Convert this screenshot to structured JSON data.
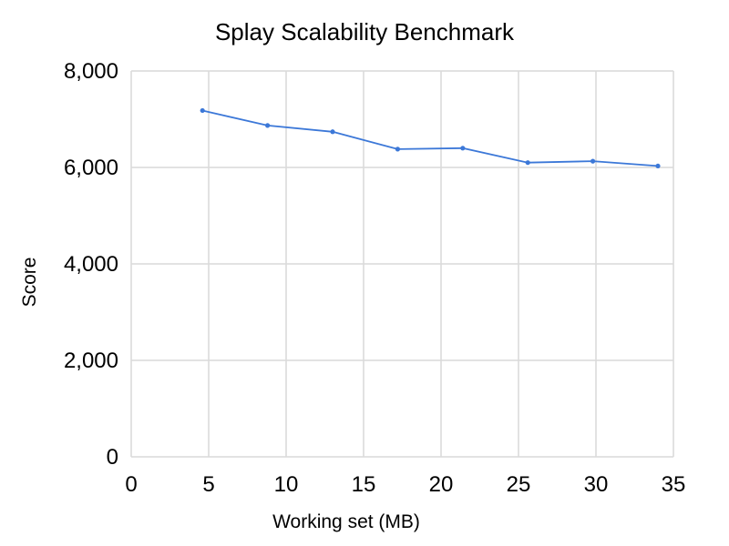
{
  "chart_data": {
    "type": "line",
    "title": "Splay Scalability Benchmark",
    "xlabel": "Working set (MB)",
    "ylabel": "Score",
    "xlim": [
      0,
      35
    ],
    "ylim": [
      0,
      8000
    ],
    "x_ticks": [
      0,
      5,
      10,
      15,
      20,
      25,
      30,
      35
    ],
    "y_ticks": [
      0,
      2000,
      4000,
      6000,
      8000
    ],
    "x_tick_labels": [
      "0",
      "5",
      "10",
      "15",
      "20",
      "25",
      "30",
      "35"
    ],
    "y_tick_labels": [
      "0",
      "2,000",
      "4,000",
      "6,000",
      "8,000"
    ],
    "grid": true,
    "legend": "none",
    "series": [
      {
        "color": "#3c78d8",
        "x": [
          4.6,
          8.8,
          13.0,
          17.2,
          21.4,
          25.6,
          29.8,
          34.0
        ],
        "y": [
          7180,
          6870,
          6740,
          6380,
          6400,
          6100,
          6130,
          6030
        ]
      }
    ]
  }
}
